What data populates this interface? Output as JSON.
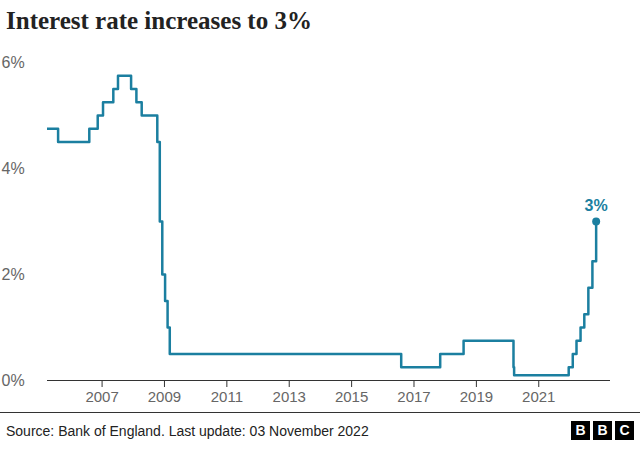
{
  "chart_data": {
    "type": "line",
    "title": "Interest rate increases to 3%",
    "source": "Source: Bank of England. Last update: 03 November 2022",
    "logo": "BBC",
    "x": [
      2005.25,
      2005.59,
      2006.59,
      2006.86,
      2007.03,
      2007.36,
      2007.51,
      2007.93,
      2008.1,
      2008.27,
      2008.77,
      2008.85,
      2008.93,
      2009.02,
      2009.1,
      2009.17,
      2016.59,
      2017.84,
      2018.59,
      2020.19,
      2020.21,
      2021.96,
      2022.09,
      2022.21,
      2022.34,
      2022.46,
      2022.59,
      2022.72,
      2022.84
    ],
    "values": [
      4.75,
      4.5,
      4.75,
      5.0,
      5.25,
      5.5,
      5.75,
      5.5,
      5.25,
      5.0,
      4.5,
      3.0,
      2.0,
      1.5,
      1.0,
      0.5,
      0.25,
      0.5,
      0.75,
      0.25,
      0.1,
      0.25,
      0.5,
      0.75,
      1.0,
      1.25,
      1.75,
      2.25,
      3.0
    ],
    "color": "#1b7fa0",
    "line_style": "step",
    "xlim": [
      2005.25,
      2023.3
    ],
    "ylim": [
      0,
      6
    ],
    "xticks": [
      2007,
      2009,
      2011,
      2013,
      2015,
      2017,
      2019,
      2021
    ],
    "yticks": [
      {
        "value": 0,
        "label": "0%"
      },
      {
        "value": 2,
        "label": "2%"
      },
      {
        "value": 4,
        "label": "4%"
      },
      {
        "value": 6,
        "label": "6%"
      }
    ],
    "grid": false,
    "annotations": [
      {
        "text": "3%",
        "x": 2022.84,
        "y": 3
      }
    ]
  }
}
